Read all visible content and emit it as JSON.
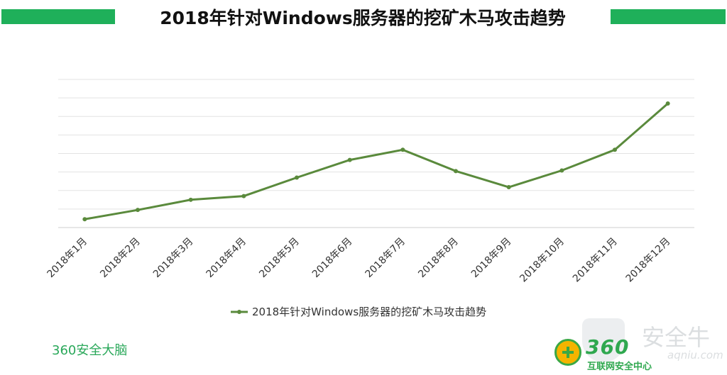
{
  "header": {
    "title": "2018年针对Windows服务器的挖矿木马攻击趋势"
  },
  "chart_data": {
    "type": "line",
    "categories": [
      "2018年1月",
      "2018年2月",
      "2018年3月",
      "2018年4月",
      "2018年5月",
      "2018年6月",
      "2018年7月",
      "2018年8月",
      "2018年9月",
      "2018年10月",
      "2018年11月",
      "2018年12月"
    ],
    "series": [
      {
        "name": "2018年针对Windows服务器的挖矿木马攻击趋势",
        "values": [
          0.45,
          0.95,
          1.5,
          1.7,
          2.7,
          3.65,
          4.2,
          3.05,
          2.18,
          3.08,
          4.2,
          6.7
        ]
      }
    ],
    "ylim": [
      0,
      8
    ],
    "grid": true,
    "y_tick_labels": false,
    "legend": "bottom-center",
    "line_color": "#5a8a3c"
  },
  "footer": {
    "brand": "360安全大脑",
    "logo_number": "360",
    "logo_subtitle": "互联网安全中心",
    "watermark_text": "安全牛",
    "watermark_url": "aqniu.com"
  }
}
